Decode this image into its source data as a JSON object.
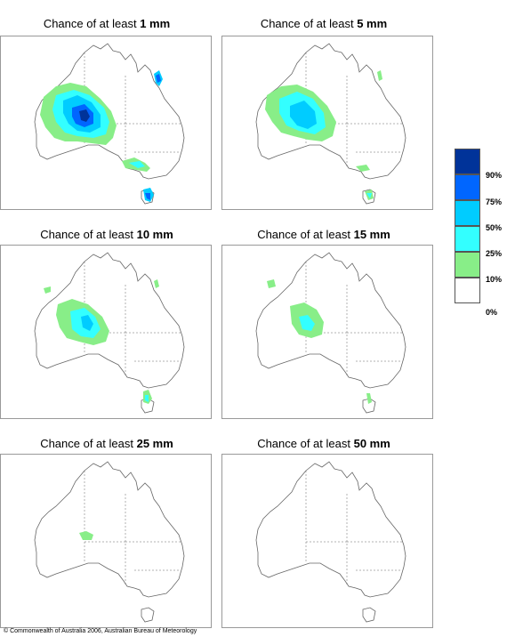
{
  "panels": [
    {
      "title_prefix": "Chance of at least ",
      "title_value": "1 mm"
    },
    {
      "title_prefix": "Chance of at least ",
      "title_value": "5 mm"
    },
    {
      "title_prefix": "Chance of at least ",
      "title_value": "10 mm"
    },
    {
      "title_prefix": "Chance of at least ",
      "title_value": "15 mm"
    },
    {
      "title_prefix": "Chance of at least ",
      "title_value": "25 mm"
    },
    {
      "title_prefix": "Chance of at least ",
      "title_value": "50 mm"
    }
  ],
  "legend": {
    "labels": [
      "90%",
      "75%",
      "50%",
      "25%",
      "10%",
      "0%"
    ],
    "colors": [
      "#003399",
      "#0066ff",
      "#00ccff",
      "#33ffff",
      "#88ee88",
      "#ffffff"
    ]
  },
  "copyright": "© Commonwealth of Australia 2006, Australian Bureau of Meteorology"
}
